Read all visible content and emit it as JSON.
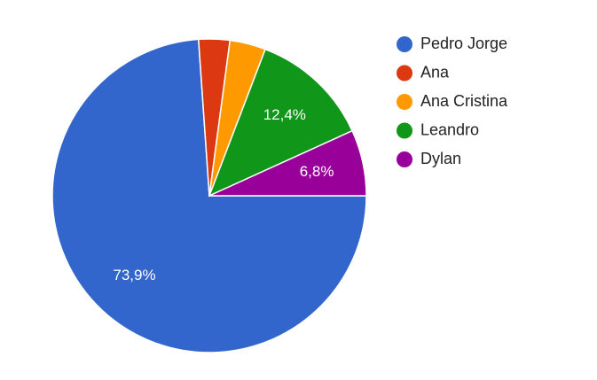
{
  "chart_data": {
    "type": "pie",
    "categories": [
      "Pedro Jorge",
      "Ana",
      "Ana Cristina",
      "Leandro",
      "Dylan"
    ],
    "values": [
      73.9,
      3.2,
      3.7,
      12.4,
      6.8
    ],
    "value_labels": [
      "73,9%",
      null,
      null,
      "12,4%",
      "6,8%"
    ],
    "colors": [
      "#3366cc",
      "#dc3912",
      "#ff9900",
      "#109618",
      "#990099"
    ],
    "legend": "right"
  }
}
